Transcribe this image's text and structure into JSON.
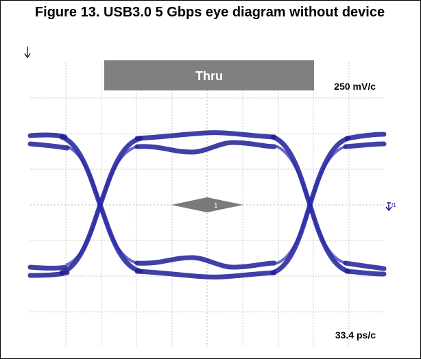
{
  "figure": {
    "title": "Figure 13. USB3.0 5 Gbps eye diagram without device",
    "label": "Thru",
    "vertical_scale": "250 mV/c",
    "horizontal_scale": "33.4 ps/c",
    "marker": "1",
    "trigger_marker": "f1"
  }
}
